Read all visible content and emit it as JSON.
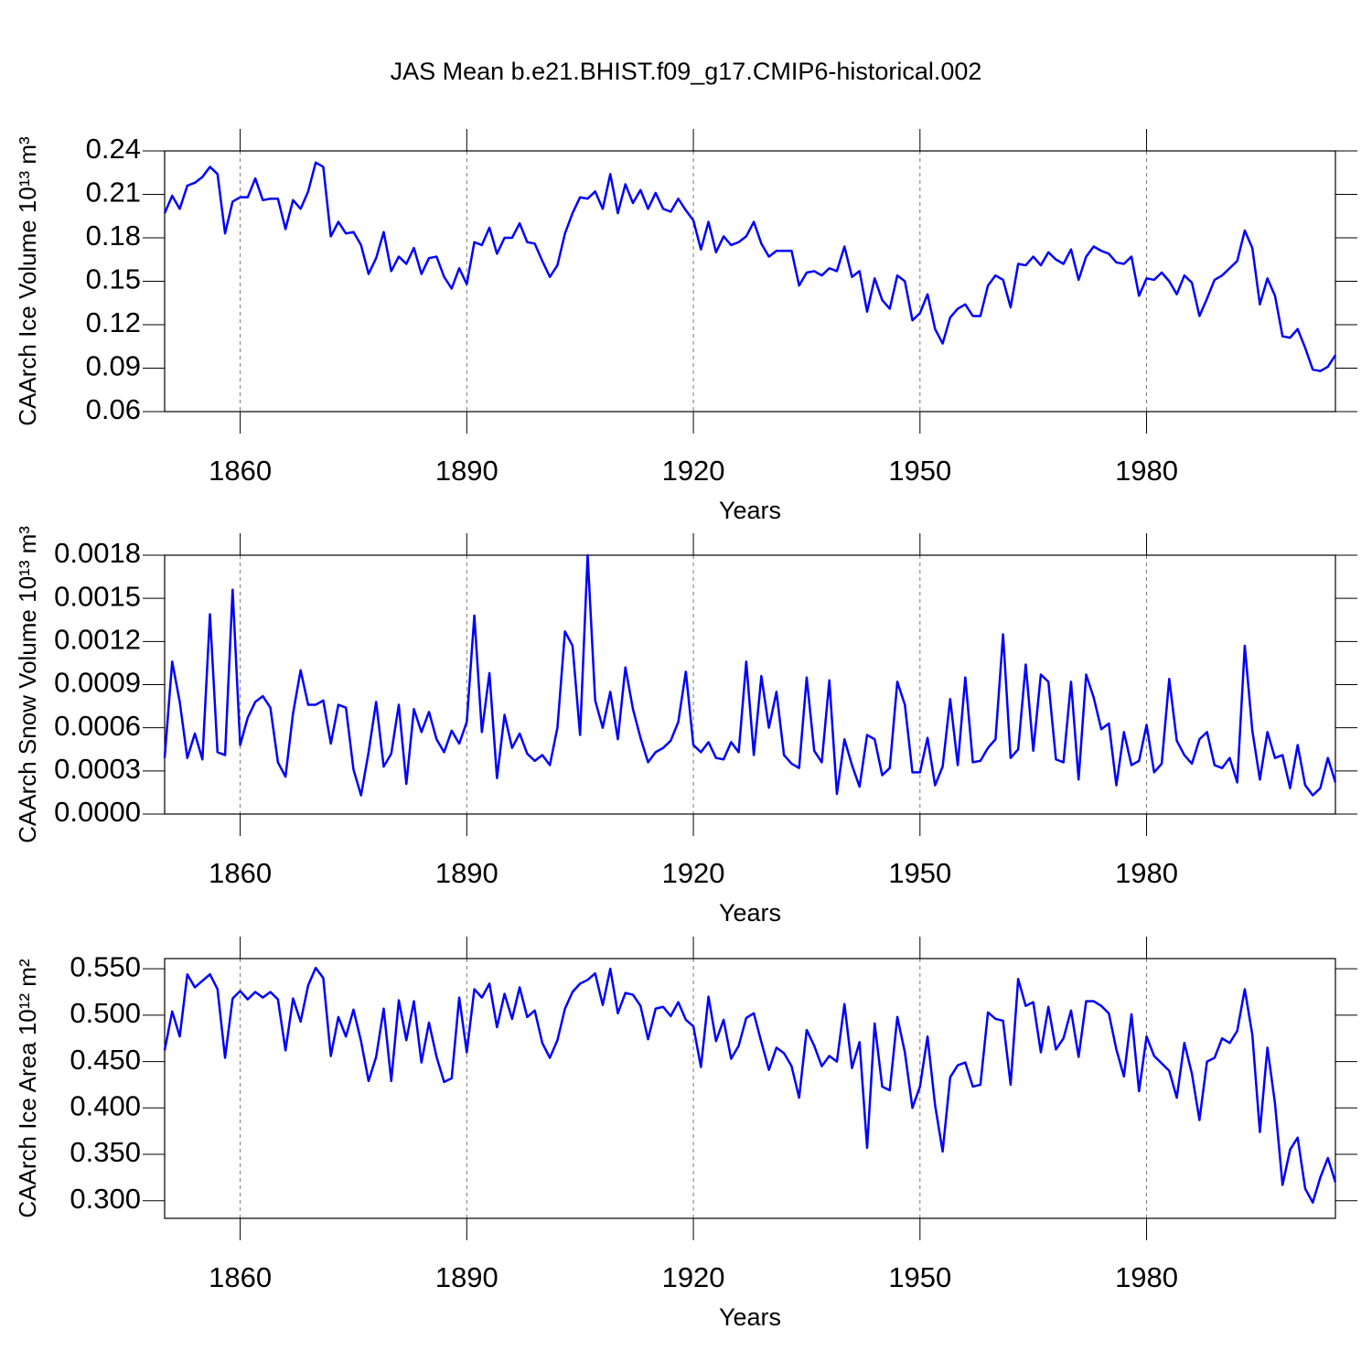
{
  "chart_data": [
    {
      "type": "line",
      "title": "JAS Mean b.e21.BHIST.f09_g17.CMIP6-historical.002",
      "xlabel": "Years",
      "ylabel": "CAArch Ice Volume 10¹³ m³",
      "color": "#0000ff",
      "grid": "x",
      "x": [
        1850,
        1851,
        1852,
        1853,
        1854,
        1855,
        1856,
        1857,
        1858,
        1859,
        1860,
        1861,
        1862,
        1863,
        1864,
        1865,
        1866,
        1867,
        1868,
        1869,
        1870,
        1871,
        1872,
        1873,
        1874,
        1875,
        1876,
        1877,
        1878,
        1879,
        1880,
        1881,
        1882,
        1883,
        1884,
        1885,
        1886,
        1887,
        1888,
        1889,
        1890,
        1891,
        1892,
        1893,
        1894,
        1895,
        1896,
        1897,
        1898,
        1899,
        1900,
        1901,
        1902,
        1903,
        1904,
        1905,
        1906,
        1907,
        1908,
        1909,
        1910,
        1911,
        1912,
        1913,
        1914,
        1915,
        1916,
        1917,
        1918,
        1919,
        1920,
        1921,
        1922,
        1923,
        1924,
        1925,
        1926,
        1927,
        1928,
        1929,
        1930,
        1931,
        1932,
        1933,
        1934,
        1935,
        1936,
        1937,
        1938,
        1939,
        1940,
        1941,
        1942,
        1943,
        1944,
        1945,
        1946,
        1947,
        1948,
        1949,
        1950,
        1951,
        1952,
        1953,
        1954,
        1955,
        1956,
        1957,
        1958,
        1959,
        1960,
        1961,
        1962,
        1963,
        1964,
        1965,
        1966,
        1967,
        1968,
        1969,
        1970,
        1971,
        1972,
        1973,
        1974,
        1975,
        1976,
        1977,
        1978,
        1979,
        1980,
        1981,
        1982,
        1983,
        1984,
        1985,
        1986,
        1987,
        1988,
        1989,
        1990,
        1991,
        1992,
        1993,
        1994,
        1995,
        1996,
        1997,
        1998,
        1999,
        2000,
        2001,
        2002,
        2003,
        2004,
        2005
      ],
      "values": [
        0.197,
        0.209,
        0.2,
        0.216,
        0.218,
        0.222,
        0.229,
        0.224,
        0.183,
        0.205,
        0.208,
        0.208,
        0.221,
        0.206,
        0.207,
        0.207,
        0.186,
        0.206,
        0.2,
        0.212,
        0.232,
        0.229,
        0.181,
        0.191,
        0.183,
        0.184,
        0.175,
        0.155,
        0.166,
        0.184,
        0.157,
        0.167,
        0.162,
        0.173,
        0.155,
        0.166,
        0.167,
        0.153,
        0.145,
        0.159,
        0.148,
        0.177,
        0.175,
        0.187,
        0.169,
        0.18,
        0.18,
        0.19,
        0.177,
        0.176,
        0.164,
        0.153,
        0.161,
        0.183,
        0.197,
        0.208,
        0.207,
        0.212,
        0.2,
        0.224,
        0.197,
        0.217,
        0.204,
        0.213,
        0.2,
        0.211,
        0.2,
        0.198,
        0.207,
        0.199,
        0.192,
        0.172,
        0.191,
        0.17,
        0.181,
        0.175,
        0.177,
        0.181,
        0.191,
        0.176,
        0.167,
        0.171,
        0.171,
        0.171,
        0.147,
        0.156,
        0.157,
        0.154,
        0.159,
        0.157,
        0.174,
        0.153,
        0.157,
        0.129,
        0.152,
        0.137,
        0.131,
        0.154,
        0.15,
        0.123,
        0.128,
        0.141,
        0.117,
        0.107,
        0.125,
        0.131,
        0.134,
        0.126,
        0.126,
        0.147,
        0.154,
        0.151,
        0.132,
        0.162,
        0.161,
        0.167,
        0.161,
        0.17,
        0.165,
        0.162,
        0.172,
        0.151,
        0.167,
        0.174,
        0.171,
        0.169,
        0.163,
        0.162,
        0.167,
        0.14,
        0.152,
        0.151,
        0.156,
        0.15,
        0.141,
        0.154,
        0.149,
        0.126,
        0.138,
        0.151,
        0.154,
        0.159,
        0.164,
        0.185,
        0.173,
        0.134,
        0.152,
        0.14,
        0.112,
        0.111,
        0.117,
        0.104,
        0.089,
        0.088,
        0.091,
        0.099
      ],
      "xlim": [
        1850,
        2005
      ],
      "xticks": [
        1860,
        1890,
        1920,
        1950,
        1980
      ],
      "ylim": [
        0.06,
        0.24
      ],
      "yticks": [
        0.06,
        0.09,
        0.12,
        0.15,
        0.18,
        0.21,
        0.24
      ]
    },
    {
      "type": "line",
      "xlabel": "Years",
      "ylabel": "CAArch Snow Volume 10¹³ m³",
      "color": "#0000ff",
      "grid": "x",
      "x": [
        1850,
        1851,
        1852,
        1853,
        1854,
        1855,
        1856,
        1857,
        1858,
        1859,
        1860,
        1861,
        1862,
        1863,
        1864,
        1865,
        1866,
        1867,
        1868,
        1869,
        1870,
        1871,
        1872,
        1873,
        1874,
        1875,
        1876,
        1877,
        1878,
        1879,
        1880,
        1881,
        1882,
        1883,
        1884,
        1885,
        1886,
        1887,
        1888,
        1889,
        1890,
        1891,
        1892,
        1893,
        1894,
        1895,
        1896,
        1897,
        1898,
        1899,
        1900,
        1901,
        1902,
        1903,
        1904,
        1905,
        1906,
        1907,
        1908,
        1909,
        1910,
        1911,
        1912,
        1913,
        1914,
        1915,
        1916,
        1917,
        1918,
        1919,
        1920,
        1921,
        1922,
        1923,
        1924,
        1925,
        1926,
        1927,
        1928,
        1929,
        1930,
        1931,
        1932,
        1933,
        1934,
        1935,
        1936,
        1937,
        1938,
        1939,
        1940,
        1941,
        1942,
        1943,
        1944,
        1945,
        1946,
        1947,
        1948,
        1949,
        1950,
        1951,
        1952,
        1953,
        1954,
        1955,
        1956,
        1957,
        1958,
        1959,
        1960,
        1961,
        1962,
        1963,
        1964,
        1965,
        1966,
        1967,
        1968,
        1969,
        1970,
        1971,
        1972,
        1973,
        1974,
        1975,
        1976,
        1977,
        1978,
        1979,
        1980,
        1981,
        1982,
        1983,
        1984,
        1985,
        1986,
        1987,
        1988,
        1989,
        1990,
        1991,
        1992,
        1993,
        1994,
        1995,
        1996,
        1997,
        1998,
        1999,
        2000,
        2001,
        2002,
        2003,
        2004,
        2005
      ],
      "values": [
        0.00039,
        0.00106,
        0.00078,
        0.00039,
        0.00056,
        0.00038,
        0.00139,
        0.00043,
        0.00041,
        0.00156,
        0.00048,
        0.00067,
        0.00078,
        0.00082,
        0.00074,
        0.00036,
        0.00026,
        0.0007,
        0.001,
        0.00076,
        0.00076,
        0.00079,
        0.00049,
        0.00076,
        0.00074,
        0.00031,
        0.00013,
        0.00043,
        0.00078,
        0.00033,
        0.00042,
        0.00076,
        0.00021,
        0.00073,
        0.00057,
        0.00071,
        0.00052,
        0.00043,
        0.00058,
        0.00049,
        0.00064,
        0.00138,
        0.00057,
        0.00098,
        0.00025,
        0.00069,
        0.00046,
        0.00056,
        0.00042,
        0.00037,
        0.00041,
        0.00034,
        0.0006,
        0.00127,
        0.00117,
        0.00055,
        0.0018,
        0.00079,
        0.0006,
        0.00085,
        0.00052,
        0.00102,
        0.00073,
        0.00053,
        0.00036,
        0.00043,
        0.00046,
        0.00051,
        0.00064,
        0.00099,
        0.00048,
        0.00043,
        0.0005,
        0.00039,
        0.00038,
        0.0005,
        0.00043,
        0.00106,
        0.00041,
        0.00096,
        0.0006,
        0.00085,
        0.00041,
        0.00035,
        0.00032,
        0.00095,
        0.00044,
        0.00036,
        0.00093,
        0.00014,
        0.00052,
        0.00034,
        0.00019,
        0.00055,
        0.00052,
        0.00027,
        0.00032,
        0.00092,
        0.00076,
        0.00029,
        0.00029,
        0.00053,
        0.0002,
        0.00033,
        0.0008,
        0.00034,
        0.00095,
        0.00036,
        0.00037,
        0.00046,
        0.00052,
        0.00125,
        0.00039,
        0.00045,
        0.00104,
        0.00044,
        0.00097,
        0.00092,
        0.00038,
        0.00036,
        0.00092,
        0.00024,
        0.00097,
        0.00081,
        0.00059,
        0.00063,
        0.0002,
        0.00057,
        0.00034,
        0.00037,
        0.00062,
        0.00029,
        0.00035,
        0.00094,
        0.00051,
        0.00041,
        0.00035,
        0.00052,
        0.00057,
        0.00034,
        0.00032,
        0.00039,
        0.00022,
        0.00117,
        0.00058,
        0.00024,
        0.00057,
        0.00039,
        0.00041,
        0.00018,
        0.00048,
        0.0002,
        0.00013,
        0.00018,
        0.00039,
        0.00022
      ],
      "xlim": [
        1850,
        2005
      ],
      "xticks": [
        1860,
        1890,
        1920,
        1950,
        1980
      ],
      "ylim": [
        0,
        0.0018
      ],
      "yticks": [
        {
          "value": 0,
          "label": "0.0000"
        },
        0.0003,
        0.0006,
        0.0009,
        0.0012,
        0.0015,
        0.0018
      ]
    },
    {
      "type": "line",
      "xlabel": "Years",
      "ylabel": "CAArch Ice Area 10¹² m²",
      "color": "#0000ff",
      "grid": "x",
      "x": [
        1850,
        1851,
        1852,
        1853,
        1854,
        1855,
        1856,
        1857,
        1858,
        1859,
        1860,
        1861,
        1862,
        1863,
        1864,
        1865,
        1866,
        1867,
        1868,
        1869,
        1870,
        1871,
        1872,
        1873,
        1874,
        1875,
        1876,
        1877,
        1878,
        1879,
        1880,
        1881,
        1882,
        1883,
        1884,
        1885,
        1886,
        1887,
        1888,
        1889,
        1890,
        1891,
        1892,
        1893,
        1894,
        1895,
        1896,
        1897,
        1898,
        1899,
        1900,
        1901,
        1902,
        1903,
        1904,
        1905,
        1906,
        1907,
        1908,
        1909,
        1910,
        1911,
        1912,
        1913,
        1914,
        1915,
        1916,
        1917,
        1918,
        1919,
        1920,
        1921,
        1922,
        1923,
        1924,
        1925,
        1926,
        1927,
        1928,
        1929,
        1930,
        1931,
        1932,
        1933,
        1934,
        1935,
        1936,
        1937,
        1938,
        1939,
        1940,
        1941,
        1942,
        1943,
        1944,
        1945,
        1946,
        1947,
        1948,
        1949,
        1950,
        1951,
        1952,
        1953,
        1954,
        1955,
        1956,
        1957,
        1958,
        1959,
        1960,
        1961,
        1962,
        1963,
        1964,
        1965,
        1966,
        1967,
        1968,
        1969,
        1970,
        1971,
        1972,
        1973,
        1974,
        1975,
        1976,
        1977,
        1978,
        1979,
        1980,
        1981,
        1982,
        1983,
        1984,
        1985,
        1986,
        1987,
        1988,
        1989,
        1990,
        1991,
        1992,
        1993,
        1994,
        1995,
        1996,
        1997,
        1998,
        1999,
        2000,
        2001,
        2002,
        2003,
        2004,
        2005
      ],
      "values": [
        0.462,
        0.504,
        0.477,
        0.544,
        0.53,
        0.537,
        0.544,
        0.528,
        0.454,
        0.518,
        0.526,
        0.517,
        0.525,
        0.519,
        0.525,
        0.517,
        0.462,
        0.518,
        0.493,
        0.532,
        0.551,
        0.54,
        0.456,
        0.498,
        0.477,
        0.506,
        0.472,
        0.429,
        0.455,
        0.507,
        0.429,
        0.516,
        0.473,
        0.515,
        0.449,
        0.492,
        0.455,
        0.428,
        0.432,
        0.519,
        0.46,
        0.528,
        0.519,
        0.534,
        0.487,
        0.523,
        0.496,
        0.53,
        0.498,
        0.505,
        0.47,
        0.454,
        0.473,
        0.507,
        0.525,
        0.534,
        0.538,
        0.545,
        0.511,
        0.55,
        0.502,
        0.524,
        0.522,
        0.51,
        0.474,
        0.507,
        0.509,
        0.499,
        0.514,
        0.495,
        0.488,
        0.444,
        0.52,
        0.472,
        0.495,
        0.453,
        0.467,
        0.497,
        0.502,
        0.471,
        0.441,
        0.465,
        0.459,
        0.445,
        0.411,
        0.484,
        0.467,
        0.445,
        0.456,
        0.45,
        0.512,
        0.443,
        0.471,
        0.357,
        0.491,
        0.423,
        0.419,
        0.498,
        0.46,
        0.4,
        0.423,
        0.477,
        0.403,
        0.353,
        0.433,
        0.446,
        0.449,
        0.423,
        0.425,
        0.503,
        0.496,
        0.494,
        0.425,
        0.539,
        0.51,
        0.514,
        0.46,
        0.509,
        0.463,
        0.475,
        0.505,
        0.455,
        0.515,
        0.515,
        0.51,
        0.502,
        0.463,
        0.434,
        0.501,
        0.418,
        0.477,
        0.456,
        0.448,
        0.44,
        0.411,
        0.47,
        0.437,
        0.387,
        0.45,
        0.454,
        0.475,
        0.47,
        0.483,
        0.528,
        0.479,
        0.374,
        0.465,
        0.405,
        0.317,
        0.355,
        0.368,
        0.313,
        0.298,
        0.325,
        0.346,
        0.32
      ],
      "xlim": [
        1850,
        2005
      ],
      "xticks": [
        1860,
        1890,
        1920,
        1950,
        1980
      ],
      "ylim": [
        0.281,
        0.561
      ],
      "yticks": [
        {
          "value": 0.3,
          "label": "0.300"
        },
        {
          "value": 0.35,
          "label": "0.350"
        },
        {
          "value": 0.4,
          "label": "0.400"
        },
        {
          "value": 0.45,
          "label": "0.450"
        },
        {
          "value": 0.5,
          "label": "0.500"
        },
        {
          "value": 0.55,
          "label": "0.550"
        }
      ]
    }
  ]
}
